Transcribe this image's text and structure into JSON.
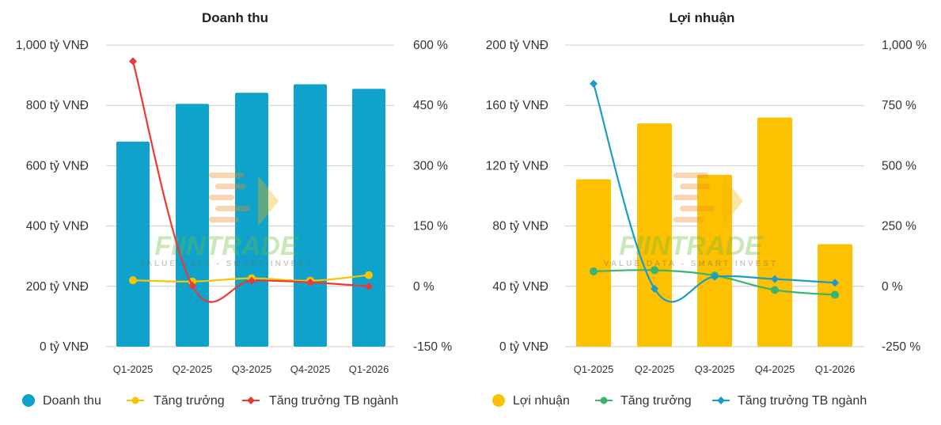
{
  "chart_data": [
    {
      "type": "bar",
      "title": "Doanh thu",
      "categories": [
        "Q1-2025",
        "Q2-2025",
        "Q3-2025",
        "Q4-2025",
        "Q1-2026"
      ],
      "y_left": {
        "ticks": [
          "0 tỷ VNĐ",
          "200 tỷ VNĐ",
          "400 tỷ VNĐ",
          "600 tỷ VNĐ",
          "800 tỷ VNĐ",
          "1,000 tỷ VNĐ"
        ],
        "range": [
          0,
          1000
        ]
      },
      "y_right": {
        "ticks": [
          "-150 %",
          "0 %",
          "150 %",
          "300 %",
          "450 %",
          "600 %"
        ],
        "range": [
          -150,
          600
        ]
      },
      "series": [
        {
          "name": "Doanh thu",
          "kind": "bar",
          "axis": "left",
          "color": "#0fa3cc",
          "marker": "circle",
          "values": [
            680,
            805,
            842,
            870,
            855
          ]
        },
        {
          "name": "Tăng trưởng",
          "kind": "line",
          "axis": "right",
          "color": "#f7c400",
          "marker": "circle",
          "values": [
            15,
            12,
            20,
            14,
            28
          ]
        },
        {
          "name": "Tăng trưởng TB ngành",
          "kind": "line",
          "axis": "right",
          "color": "#e83a36",
          "marker": "diamond",
          "values": [
            560,
            2,
            14,
            10,
            0
          ]
        }
      ],
      "grid": true,
      "legend": "bottom-left"
    },
    {
      "type": "bar",
      "title": "Lợi nhuận",
      "categories": [
        "Q1-2025",
        "Q2-2025",
        "Q3-2025",
        "Q4-2025",
        "Q1-2026"
      ],
      "y_left": {
        "ticks": [
          "0 tỷ VNĐ",
          "40 tỷ VNĐ",
          "80 tỷ VNĐ",
          "120 tỷ VNĐ",
          "160 tỷ VNĐ",
          "200 tỷ VNĐ"
        ],
        "range": [
          0,
          200
        ]
      },
      "y_right": {
        "ticks": [
          "-250 %",
          "0 %",
          "250 %",
          "500 %",
          "750 %",
          "1,000 %"
        ],
        "range": [
          -250,
          1000
        ]
      },
      "series": [
        {
          "name": "Lợi nhuận",
          "kind": "bar",
          "axis": "left",
          "color": "#fdc100",
          "marker": "circle",
          "values": [
            111,
            148,
            114,
            152,
            68
          ]
        },
        {
          "name": "Tăng trưởng",
          "kind": "line",
          "axis": "right",
          "color": "#3cb371",
          "marker": "circle",
          "values": [
            62,
            67,
            45,
            -15,
            -35
          ]
        },
        {
          "name": "Tăng trưởng TB ngành",
          "kind": "line",
          "axis": "right",
          "color": "#1a9bc9",
          "marker": "diamond",
          "values": [
            840,
            -10,
            40,
            30,
            15
          ]
        }
      ],
      "grid": true,
      "legend": "bottom-left"
    }
  ],
  "watermark": {
    "text": "FIINTRADE",
    "tagline": "VALUE DATA - SMART INVEST"
  }
}
